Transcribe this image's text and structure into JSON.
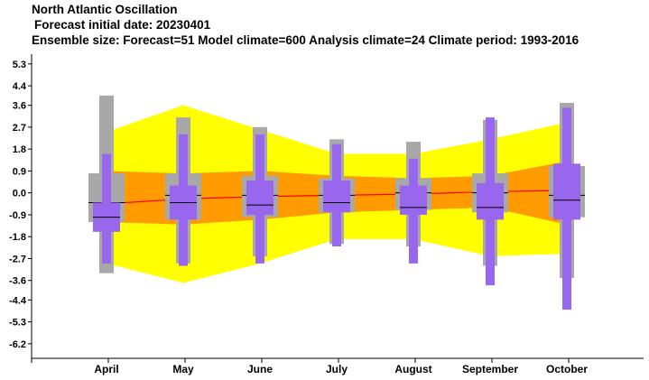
{
  "header": {
    "line1": "North Atlantic Oscillation",
    "line2": "Forecast initial date: 20230401",
    "line3": "Ensemble size: Forecast=51 Model climate=600 Analysis climate=24   Climate period: 1993-2016"
  },
  "colors": {
    "outer_band": "#ffff00",
    "inner_band": "#ff9a00",
    "climate_box": "#a8a8a8",
    "forecast_box": "#9966ee",
    "median_line": "#ff0000",
    "axis": "#000000"
  },
  "chart_data": {
    "type": "box",
    "title": "North Atlantic Oscillation",
    "categories": [
      "April",
      "May",
      "June",
      "July",
      "August",
      "September",
      "October"
    ],
    "y_ticks": [
      "5.3",
      "4.4",
      "3.6",
      "2.7",
      "1.8",
      "0.9",
      "0.0",
      "-0.9",
      "-1.8",
      "-2.7",
      "-3.6",
      "-4.4",
      "-5.3",
      "-6.2"
    ],
    "ylim": [
      -6.8,
      5.7
    ],
    "grid": false,
    "legend": "none",
    "climate_band_outer": {
      "upper": [
        2.5,
        3.6,
        2.6,
        1.6,
        1.6,
        2.2,
        2.9
      ],
      "lower": [
        -2.9,
        -3.7,
        -2.9,
        -1.9,
        -1.9,
        -2.6,
        -2.5
      ]
    },
    "climate_band_inner": {
      "upper": [
        0.9,
        0.8,
        0.9,
        0.7,
        0.6,
        0.7,
        1.3
      ],
      "lower": [
        -1.2,
        -1.3,
        -1.1,
        -0.8,
        -0.7,
        -0.6,
        -1.3
      ]
    },
    "climate_median_line": [
      -0.45,
      -0.25,
      -0.15,
      -0.1,
      -0.05,
      0.05,
      0.1
    ],
    "climate_boxes": [
      {
        "q1": -1.2,
        "q3": 0.8,
        "whisker_low": -3.3,
        "whisker_high": 4.0,
        "median": -0.4
      },
      {
        "q1": -1.1,
        "q3": 0.8,
        "whisker_low": -2.9,
        "whisker_high": 3.1,
        "median": -0.1
      },
      {
        "q1": -1.0,
        "q3": 0.7,
        "whisker_low": -2.6,
        "whisker_high": 2.7,
        "median": -0.1
      },
      {
        "q1": -0.8,
        "q3": 0.6,
        "whisker_low": -2.1,
        "whisker_high": 2.2,
        "median": -0.1
      },
      {
        "q1": -0.7,
        "q3": 0.6,
        "whisker_low": -2.2,
        "whisker_high": 2.1,
        "median": 0.0
      },
      {
        "q1": -0.8,
        "q3": 0.8,
        "whisker_low": -3.0,
        "whisker_high": 3.0,
        "median": 0.0
      },
      {
        "q1": -1.0,
        "q3": 1.1,
        "whisker_low": -3.5,
        "whisker_high": 3.7,
        "median": -0.1
      }
    ],
    "forecast_boxes": [
      {
        "q1": -1.6,
        "q3": -0.4,
        "whisker_low": -2.9,
        "whisker_high": 1.6,
        "median": -1.0
      },
      {
        "q1": -1.1,
        "q3": 0.3,
        "whisker_low": -3.0,
        "whisker_high": 2.4,
        "median": -0.4
      },
      {
        "q1": -0.9,
        "q3": 0.5,
        "whisker_low": -2.9,
        "whisker_high": 2.4,
        "median": -0.5
      },
      {
        "q1": -0.8,
        "q3": 0.5,
        "whisker_low": -2.2,
        "whisker_high": 2.0,
        "median": -0.4
      },
      {
        "q1": -0.9,
        "q3": 0.3,
        "whisker_low": -2.9,
        "whisker_high": 1.4,
        "median": -0.6
      },
      {
        "q1": -1.1,
        "q3": 0.4,
        "whisker_low": -3.8,
        "whisker_high": 3.1,
        "median": -0.6
      },
      {
        "q1": -1.1,
        "q3": 1.2,
        "whisker_low": -4.8,
        "whisker_high": 3.5,
        "median": -0.3
      }
    ]
  }
}
